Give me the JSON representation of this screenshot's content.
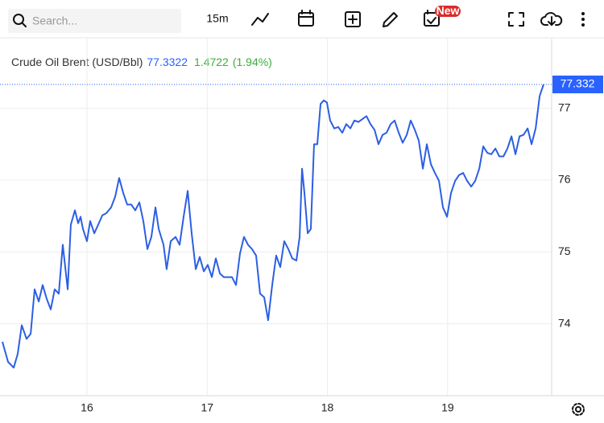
{
  "toolbar": {
    "search_placeholder": "Search...",
    "interval": "15m",
    "badge": "New"
  },
  "chart_data": {
    "type": "line",
    "title": "Crude Oil Brent (USD/Bbl)",
    "last": "77.3322",
    "change": "1.4722",
    "change_pct": "(1.94%)",
    "last_label": "77.332",
    "x": [
      15.297,
      15.344,
      15.391,
      15.424,
      15.458,
      15.498,
      15.532,
      15.565,
      15.599,
      15.632,
      15.665,
      15.699,
      15.732,
      15.766,
      15.799,
      15.84,
      15.866,
      15.9,
      15.927,
      15.947,
      15.967,
      16.0,
      16.027,
      16.061,
      16.094,
      16.128,
      16.161,
      16.201,
      16.235,
      16.268,
      16.302,
      16.335,
      16.369,
      16.402,
      16.436,
      16.469,
      16.503,
      16.536,
      16.57,
      16.597,
      16.637,
      16.663,
      16.697,
      16.737,
      16.771,
      16.804,
      16.838,
      16.871,
      16.905,
      16.938,
      16.972,
      17.005,
      17.039,
      17.072,
      17.106,
      17.139,
      17.173,
      17.206,
      17.24,
      17.273,
      17.306,
      17.34,
      17.373,
      17.407,
      17.44,
      17.474,
      17.507,
      17.541,
      17.574,
      17.608,
      17.641,
      17.675,
      17.708,
      17.742,
      17.769,
      17.789,
      17.809,
      17.836,
      17.862,
      17.889,
      17.916,
      17.943,
      17.97,
      17.996,
      18.023,
      18.057,
      18.09,
      18.124,
      18.157,
      18.191,
      18.224,
      18.258,
      18.291,
      18.325,
      18.358,
      18.392,
      18.425,
      18.459,
      18.492,
      18.526,
      18.559,
      18.593,
      18.626,
      18.66,
      18.693,
      18.727,
      18.76,
      18.794,
      18.827,
      18.861,
      18.894,
      18.928,
      18.961,
      18.995,
      19.028,
      19.062,
      19.095,
      19.129,
      19.162,
      19.196,
      19.229,
      19.263,
      19.296,
      19.33,
      19.363,
      19.397,
      19.43,
      19.464,
      19.497,
      19.531,
      19.564,
      19.598,
      19.631,
      19.665,
      19.698,
      19.732,
      19.765,
      19.798
    ],
    "series": [
      {
        "name": "Crude Oil Brent (USD/Bbl)",
        "color": "#2b5fe3",
        "values": [
          73.75,
          73.47,
          73.39,
          73.58,
          73.98,
          73.79,
          73.86,
          74.48,
          74.31,
          74.54,
          74.35,
          74.2,
          74.48,
          74.42,
          75.1,
          74.48,
          75.38,
          75.58,
          75.4,
          75.49,
          75.32,
          75.15,
          75.43,
          75.26,
          75.38,
          75.51,
          75.54,
          75.62,
          75.77,
          76.03,
          75.82,
          75.66,
          75.66,
          75.58,
          75.69,
          75.43,
          75.04,
          75.21,
          75.62,
          75.32,
          75.1,
          74.76,
          75.15,
          75.21,
          75.1,
          75.49,
          75.85,
          75.26,
          74.76,
          74.93,
          74.73,
          74.82,
          74.65,
          74.91,
          74.7,
          74.65,
          74.65,
          74.65,
          74.54,
          74.98,
          75.21,
          75.1,
          75.04,
          74.95,
          74.42,
          74.37,
          74.05,
          74.54,
          74.95,
          74.79,
          75.15,
          75.04,
          74.91,
          74.88,
          75.21,
          76.16,
          75.82,
          75.26,
          75.32,
          76.5,
          76.5,
          77.06,
          77.11,
          77.08,
          76.83,
          76.72,
          76.74,
          76.66,
          76.78,
          76.72,
          76.83,
          76.81,
          76.85,
          76.89,
          76.78,
          76.7,
          76.5,
          76.63,
          76.66,
          76.78,
          76.83,
          76.66,
          76.52,
          76.63,
          76.83,
          76.7,
          76.55,
          76.16,
          76.5,
          76.22,
          76.1,
          75.99,
          75.62,
          75.49,
          75.82,
          75.99,
          76.07,
          76.1,
          75.99,
          75.91,
          75.99,
          76.16,
          76.47,
          76.38,
          76.36,
          76.44,
          76.33,
          76.33,
          76.44,
          76.61,
          76.36,
          76.61,
          76.63,
          76.72,
          76.5,
          76.72,
          77.17,
          77.3322
        ]
      }
    ],
    "xlim": [
      15.277,
      19.865
    ],
    "xticks": [
      16,
      17,
      18,
      19
    ],
    "ylim": [
      73.0,
      77.97
    ],
    "yticks": [
      74,
      75,
      76,
      77
    ],
    "grid": true,
    "label_color": "#2962ff",
    "change_color": "#3cae3c"
  }
}
